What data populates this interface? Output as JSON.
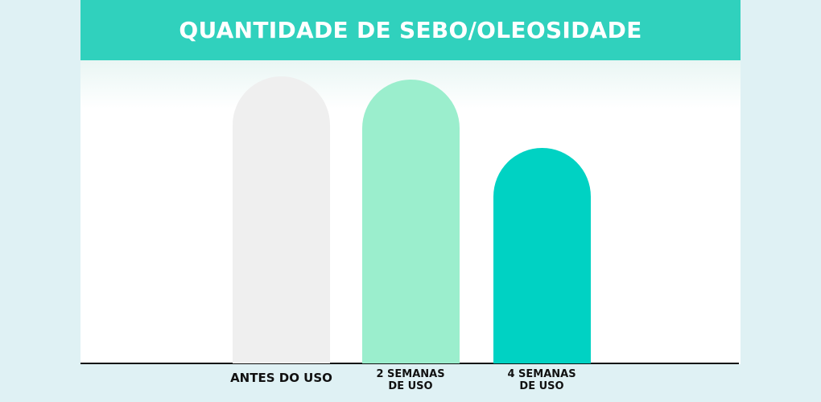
{
  "chart_data": {
    "type": "bar",
    "title": "QUANTIDADE DE SEBO/OLEOSIDADE",
    "categories": [
      "ANTES DO USO",
      "2 SEMANAS\nDE USO",
      "4 SEMANAS\nDE USO"
    ],
    "values": [
      100,
      99,
      75
    ],
    "colors": [
      "#efefef",
      "#9beecd",
      "#00d2c3"
    ],
    "ylim": [
      0,
      100
    ]
  }
}
